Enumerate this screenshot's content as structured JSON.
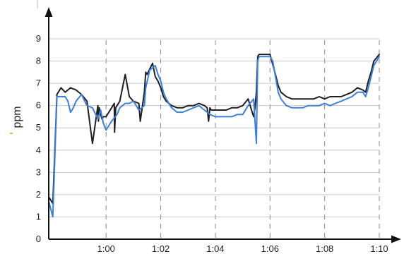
{
  "chart_data": {
    "type": "line",
    "xlabel": "",
    "ylabel": "ppm",
    "x_ticks": [
      {
        "x": 60,
        "label": "1:00"
      },
      {
        "x": 62,
        "label": "1:02"
      },
      {
        "x": 64,
        "label": "1:04"
      },
      {
        "x": 66,
        "label": "1:06"
      },
      {
        "x": 68,
        "label": "1:08"
      },
      {
        "x": 70,
        "label": "1:10"
      }
    ],
    "y_ticks": [
      0,
      1,
      2,
      3,
      4,
      5,
      6,
      7,
      8,
      9
    ],
    "xlim": [
      57.9,
      70.0
    ],
    "ylim": [
      0,
      9
    ],
    "grid": {
      "y": "solid",
      "x": "dashed"
    },
    "legend": "none",
    "series": [
      {
        "color": "#1f1f23",
        "x": [
          57.9,
          58.05,
          58.2,
          58.35,
          58.5,
          58.7,
          58.9,
          59.1,
          59.3,
          59.5,
          59.7,
          59.72,
          59.75,
          59.8,
          59.85,
          59.9,
          60.0,
          60.2,
          60.3,
          60.31,
          60.35,
          60.5,
          60.7,
          60.85,
          61.0,
          61.2,
          61.25,
          61.4,
          61.45,
          61.5,
          61.7,
          61.8,
          61.9,
          62.0,
          62.1,
          62.2,
          62.4,
          62.6,
          62.8,
          63.0,
          63.2,
          63.4,
          63.6,
          63.7,
          63.75,
          63.8,
          63.85,
          63.9,
          64.0,
          64.2,
          64.4,
          64.6,
          64.8,
          65.0,
          65.2,
          65.4,
          65.45,
          65.5,
          65.55,
          65.6,
          65.65,
          65.7,
          65.75,
          66.0,
          66.2,
          66.3,
          66.4,
          66.6,
          66.8,
          67.0,
          67.2,
          67.4,
          67.6,
          67.8,
          68.0,
          68.2,
          68.4,
          68.6,
          68.8,
          69.0,
          69.2,
          69.4,
          69.5,
          69.6,
          69.7,
          69.8,
          70.0
        ],
        "y": [
          1.9,
          1.6,
          6.5,
          6.8,
          6.6,
          6.8,
          6.7,
          6.5,
          6.2,
          4.3,
          6.0,
          5.3,
          5.9,
          5.6,
          5.4,
          5.5,
          5.5,
          5.9,
          6.1,
          4.8,
          5.9,
          6.2,
          7.4,
          6.4,
          6.2,
          6.1,
          5.3,
          6.6,
          7.5,
          7.4,
          7.9,
          7.3,
          7.1,
          6.8,
          6.4,
          6.2,
          6.0,
          5.9,
          5.9,
          6.0,
          6.0,
          6.1,
          6.0,
          5.9,
          5.3,
          5.9,
          5.8,
          5.8,
          5.8,
          5.8,
          5.8,
          5.9,
          5.9,
          6.0,
          6.3,
          5.5,
          5.9,
          6.6,
          8.2,
          8.3,
          8.3,
          8.3,
          8.3,
          8.3,
          7.4,
          6.9,
          6.6,
          6.4,
          6.3,
          6.3,
          6.3,
          6.3,
          6.3,
          6.4,
          6.3,
          6.4,
          6.4,
          6.4,
          6.5,
          6.6,
          6.8,
          6.7,
          6.6,
          7.1,
          7.5,
          8.0,
          8.3
        ]
      },
      {
        "color": "#3d7fd9",
        "x": [
          57.9,
          58.05,
          58.2,
          58.35,
          58.5,
          58.6,
          58.7,
          58.8,
          58.9,
          59.1,
          59.3,
          59.5,
          59.7,
          59.75,
          59.8,
          59.9,
          60.0,
          60.2,
          60.4,
          60.5,
          60.7,
          60.85,
          61.0,
          61.2,
          61.4,
          61.45,
          61.6,
          61.8,
          61.9,
          62.0,
          62.1,
          62.2,
          62.4,
          62.6,
          62.8,
          63.0,
          63.2,
          63.4,
          63.6,
          63.8,
          64.0,
          64.2,
          64.4,
          64.6,
          64.8,
          65.0,
          65.2,
          65.4,
          65.5,
          65.55,
          65.6,
          65.7,
          66.0,
          66.1,
          66.2,
          66.3,
          66.4,
          66.6,
          66.8,
          67.0,
          67.2,
          67.4,
          67.6,
          67.8,
          68.0,
          68.2,
          68.4,
          68.6,
          68.8,
          69.0,
          69.2,
          69.4,
          69.5,
          69.6,
          69.7,
          69.8,
          70.0
        ],
        "y": [
          1.7,
          1.0,
          6.4,
          6.4,
          6.4,
          6.2,
          5.7,
          5.9,
          6.2,
          6.5,
          6.0,
          5.9,
          5.4,
          5.6,
          5.8,
          5.2,
          4.9,
          5.3,
          5.6,
          5.9,
          6.1,
          6.1,
          6.2,
          5.8,
          6.0,
          6.8,
          7.6,
          7.8,
          7.4,
          7.1,
          6.6,
          6.3,
          5.9,
          5.7,
          5.7,
          5.8,
          5.9,
          6.0,
          5.8,
          5.6,
          5.5,
          5.5,
          5.5,
          5.5,
          5.6,
          5.6,
          6.0,
          6.3,
          4.3,
          8.0,
          8.2,
          8.2,
          8.2,
          8.0,
          7.3,
          6.6,
          6.3,
          6.0,
          5.9,
          5.9,
          5.9,
          6.0,
          6.0,
          6.0,
          6.1,
          6.0,
          6.1,
          6.2,
          6.3,
          6.4,
          6.6,
          6.6,
          6.4,
          6.8,
          7.3,
          7.8,
          8.2
        ]
      }
    ]
  }
}
